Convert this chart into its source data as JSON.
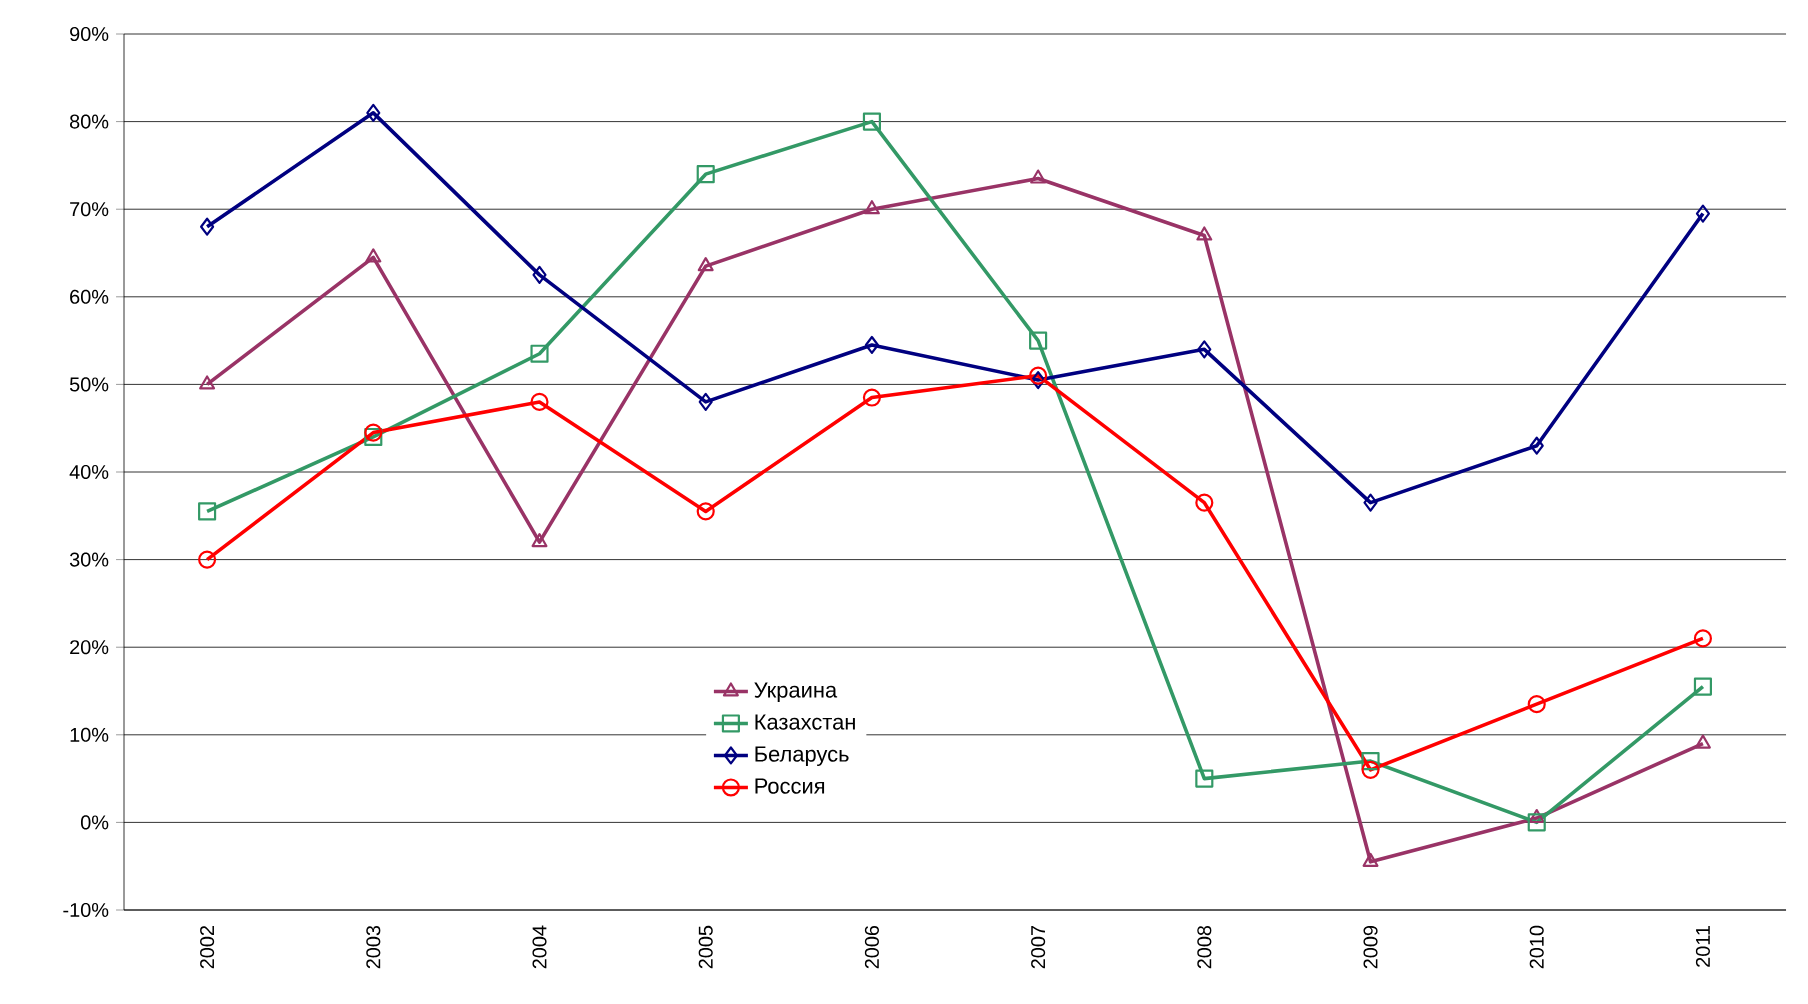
{
  "chart_data": {
    "type": "line",
    "categories": [
      "2002",
      "2003",
      "2004",
      "2005",
      "2006",
      "2007",
      "2008",
      "2009",
      "2010",
      "2011"
    ],
    "series": [
      {
        "name": "Украина",
        "color": "#993366",
        "marker": "triangle",
        "values": [
          50,
          64.5,
          32,
          63.5,
          70,
          73.5,
          67,
          -4.5,
          0.5,
          9
        ]
      },
      {
        "name": "Казахстан",
        "color": "#339966",
        "marker": "square",
        "values": [
          35.5,
          44,
          53.5,
          74,
          80,
          55,
          5,
          7,
          0,
          15.5
        ]
      },
      {
        "name": "Беларусь",
        "color": "#000080",
        "marker": "diamond",
        "values": [
          68,
          81,
          62.5,
          48,
          54.5,
          50.5,
          54,
          36.5,
          43,
          69.5
        ]
      },
      {
        "name": "Россия",
        "color": "#ff0000",
        "marker": "circle",
        "values": [
          30,
          44.5,
          48,
          35.5,
          48.5,
          51,
          36.5,
          6,
          13.5,
          21
        ]
      }
    ],
    "ylim": [
      -10,
      90
    ],
    "yticks": [
      {
        "value": -10,
        "label": "-10%"
      },
      {
        "value": 0,
        "label": "0%"
      },
      {
        "value": 10,
        "label": "10%"
      },
      {
        "value": 20,
        "label": "20%"
      },
      {
        "value": 30,
        "label": "30%"
      },
      {
        "value": 40,
        "label": "40%"
      },
      {
        "value": 50,
        "label": "50%"
      },
      {
        "value": 60,
        "label": "60%"
      },
      {
        "value": 70,
        "label": "70%"
      },
      {
        "value": 80,
        "label": "80%"
      },
      {
        "value": 90,
        "label": "90%"
      }
    ],
    "grid": "y",
    "legend": "center"
  }
}
